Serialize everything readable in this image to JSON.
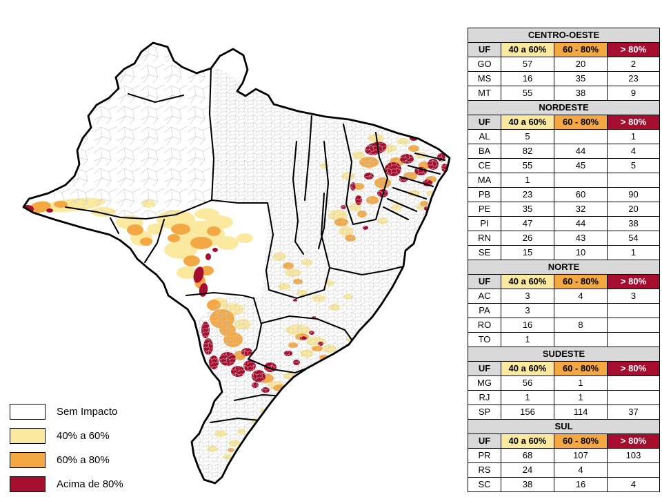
{
  "map": {
    "name": "Mapa coroplético do Brasil por municípios - impacto",
    "land_color": "#ffffff",
    "border_color": "#000000",
    "municipal_line_color": "#c8c8c8"
  },
  "legend": {
    "items": [
      {
        "key": "none",
        "label": "Sem Impacto",
        "color": "#ffffff"
      },
      {
        "key": "low",
        "label": "40% a 60%",
        "color": "#fbe99f"
      },
      {
        "key": "mid",
        "label": "60% a 80%",
        "color": "#f4a843"
      },
      {
        "key": "high",
        "label": "Acima de 80%",
        "color": "#a50e2e"
      }
    ]
  },
  "table": {
    "header_gray": "#d9d9d9",
    "columns": [
      "UF",
      "40 a 60%",
      "60 - 80%",
      "> 80%"
    ],
    "column_keys": [
      "uf",
      "low",
      "mid",
      "high"
    ],
    "regions": [
      {
        "name": "CENTRO-OESTE",
        "rows": [
          [
            "GO",
            57,
            20,
            2
          ],
          [
            "MS",
            16,
            35,
            23
          ],
          [
            "MT",
            55,
            38,
            9
          ]
        ]
      },
      {
        "name": "NORDESTE",
        "rows": [
          [
            "AL",
            5,
            null,
            1
          ],
          [
            "BA",
            82,
            44,
            4
          ],
          [
            "CE",
            55,
            45,
            5
          ],
          [
            "MA",
            1,
            null,
            null
          ],
          [
            "PB",
            23,
            60,
            90
          ],
          [
            "PE",
            35,
            32,
            20
          ],
          [
            "PI",
            47,
            44,
            38
          ],
          [
            "RN",
            26,
            43,
            54
          ],
          [
            "SE",
            15,
            10,
            1
          ]
        ]
      },
      {
        "name": "NORTE",
        "rows": [
          [
            "AC",
            3,
            4,
            3
          ],
          [
            "PA",
            3,
            null,
            null
          ],
          [
            "RO",
            16,
            8,
            null
          ],
          [
            "TO",
            1,
            null,
            null
          ]
        ]
      },
      {
        "name": "SUDESTE",
        "rows": [
          [
            "MG",
            56,
            1,
            null
          ],
          [
            "RJ",
            1,
            1,
            null
          ],
          [
            "SP",
            156,
            114,
            37
          ]
        ]
      },
      {
        "name": "SUL",
        "rows": [
          [
            "PR",
            68,
            107,
            103
          ],
          [
            "RS",
            24,
            4,
            null
          ],
          [
            "SC",
            38,
            16,
            4
          ]
        ]
      }
    ]
  },
  "chart_data": {
    "type": "table",
    "title": "Municípios por faixa de impacto, por região e UF",
    "columns": [
      "UF",
      "40 a 60%",
      "60 - 80%",
      "> 80%"
    ],
    "sections": [
      {
        "name": "CENTRO-OESTE",
        "rows": [
          [
            "GO",
            57,
            20,
            2
          ],
          [
            "MS",
            16,
            35,
            23
          ],
          [
            "MT",
            55,
            38,
            9
          ]
        ]
      },
      {
        "name": "NORDESTE",
        "rows": [
          [
            "AL",
            5,
            null,
            1
          ],
          [
            "BA",
            82,
            44,
            4
          ],
          [
            "CE",
            55,
            45,
            5
          ],
          [
            "MA",
            1,
            null,
            null
          ],
          [
            "PB",
            23,
            60,
            90
          ],
          [
            "PE",
            35,
            32,
            20
          ],
          [
            "PI",
            47,
            44,
            38
          ],
          [
            "RN",
            26,
            43,
            54
          ],
          [
            "SE",
            15,
            10,
            1
          ]
        ]
      },
      {
        "name": "NORTE",
        "rows": [
          [
            "AC",
            3,
            4,
            3
          ],
          [
            "PA",
            3,
            null,
            null
          ],
          [
            "RO",
            16,
            8,
            null
          ],
          [
            "TO",
            1,
            null,
            null
          ]
        ]
      },
      {
        "name": "SUDESTE",
        "rows": [
          [
            "MG",
            56,
            1,
            null
          ],
          [
            "RJ",
            1,
            1,
            null
          ],
          [
            "SP",
            156,
            114,
            37
          ]
        ]
      },
      {
        "name": "SUL",
        "rows": [
          [
            "PR",
            68,
            107,
            103
          ],
          [
            "RS",
            24,
            4,
            null
          ],
          [
            "SC",
            38,
            16,
            4
          ]
        ]
      }
    ],
    "legend": [
      "Sem Impacto",
      "40% a 60%",
      "60% a 80%",
      "Acima de 80%"
    ]
  }
}
